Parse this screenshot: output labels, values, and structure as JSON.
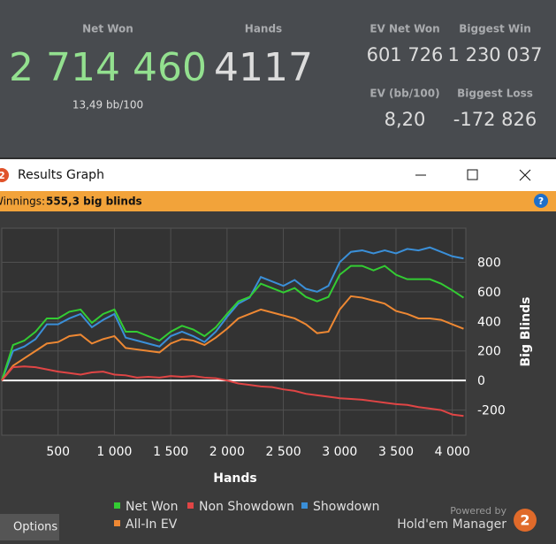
{
  "stats": {
    "net_won": {
      "label": "Net Won",
      "value": "2 714 460",
      "sub": "13,49 bb/100"
    },
    "hands": {
      "label": "Hands",
      "value": "4117"
    },
    "ev_net_won": {
      "label": "EV Net Won",
      "value": "601 726"
    },
    "biggest_win": {
      "label": "Biggest Win",
      "value": "1 230 037"
    },
    "ev_bb100": {
      "label": "EV (bb/100)",
      "value": "8,20"
    },
    "biggest_loss": {
      "label": "Biggest Loss",
      "value": "-172 826"
    }
  },
  "window": {
    "icon": "2",
    "title": "Results Graph",
    "winnings_label": "Winnings:",
    "winnings_value": "555,3 big blinds",
    "help": "?",
    "options": "Options"
  },
  "brand": {
    "powered_by": "Powered by",
    "name": "Hold'em Manager",
    "logo": "2"
  },
  "chart_data": {
    "type": "line",
    "x_label": "Hands",
    "y_label": "Big Blinds",
    "xlim": [
      0,
      4120
    ],
    "ylim": [
      -370,
      1030
    ],
    "xticks": [
      500,
      {
        "value": 1000,
        "label": "1 000"
      },
      {
        "value": 1500,
        "label": "1 500"
      },
      {
        "value": 2000,
        "label": "2 000"
      },
      {
        "value": 2500,
        "label": "2 500"
      },
      {
        "value": 3000,
        "label": "3 000"
      },
      {
        "value": 3500,
        "label": "3 500"
      },
      {
        "value": 4000,
        "label": "4 000"
      }
    ],
    "yticks": [
      -200,
      0,
      200,
      400,
      600,
      800
    ],
    "grid": true,
    "x": [
      0,
      100,
      200,
      300,
      400,
      500,
      600,
      700,
      800,
      900,
      1000,
      1100,
      1200,
      1300,
      1400,
      1500,
      1600,
      1700,
      1800,
      1900,
      2000,
      2100,
      2200,
      2300,
      2400,
      2500,
      2600,
      2700,
      2800,
      2900,
      3000,
      3100,
      3200,
      3300,
      3400,
      3500,
      3600,
      3700,
      3800,
      3900,
      4000,
      4100
    ],
    "series": [
      {
        "name": "Showdown",
        "color": "#3a8fd8",
        "values": [
          0,
          200,
          230,
          280,
          380,
          380,
          420,
          450,
          360,
          410,
          450,
          290,
          270,
          250,
          230,
          300,
          330,
          300,
          260,
          330,
          430,
          520,
          560,
          700,
          670,
          640,
          680,
          620,
          600,
          640,
          800,
          870,
          880,
          860,
          880,
          860,
          890,
          880,
          900,
          870,
          840,
          825
        ]
      },
      {
        "name": "Net Won",
        "color": "#33cc33",
        "values": [
          0,
          240,
          270,
          330,
          420,
          420,
          465,
          480,
          390,
          450,
          480,
          330,
          330,
          300,
          270,
          330,
          370,
          345,
          300,
          360,
          450,
          535,
          565,
          655,
          625,
          595,
          625,
          565,
          535,
          565,
          715,
          775,
          775,
          745,
          775,
          715,
          685,
          685,
          685,
          655,
          610,
          560
        ]
      },
      {
        "name": "All-In EV",
        "color": "#ee8833",
        "values": [
          0,
          100,
          150,
          200,
          250,
          260,
          300,
          310,
          250,
          280,
          300,
          220,
          210,
          200,
          190,
          250,
          280,
          270,
          240,
          290,
          350,
          420,
          450,
          480,
          460,
          440,
          420,
          380,
          320,
          330,
          480,
          570,
          560,
          540,
          520,
          470,
          450,
          420,
          420,
          410,
          380,
          350
        ]
      },
      {
        "name": "Non Showdown",
        "color": "#e04545",
        "values": [
          0,
          90,
          95,
          90,
          75,
          60,
          50,
          40,
          55,
          60,
          40,
          35,
          20,
          25,
          20,
          30,
          25,
          30,
          20,
          15,
          0,
          -20,
          -30,
          -40,
          -45,
          -60,
          -70,
          -90,
          -100,
          -110,
          -120,
          -125,
          -130,
          -140,
          -150,
          -160,
          -165,
          -180,
          -190,
          -200,
          -230,
          -240
        ]
      }
    ]
  }
}
